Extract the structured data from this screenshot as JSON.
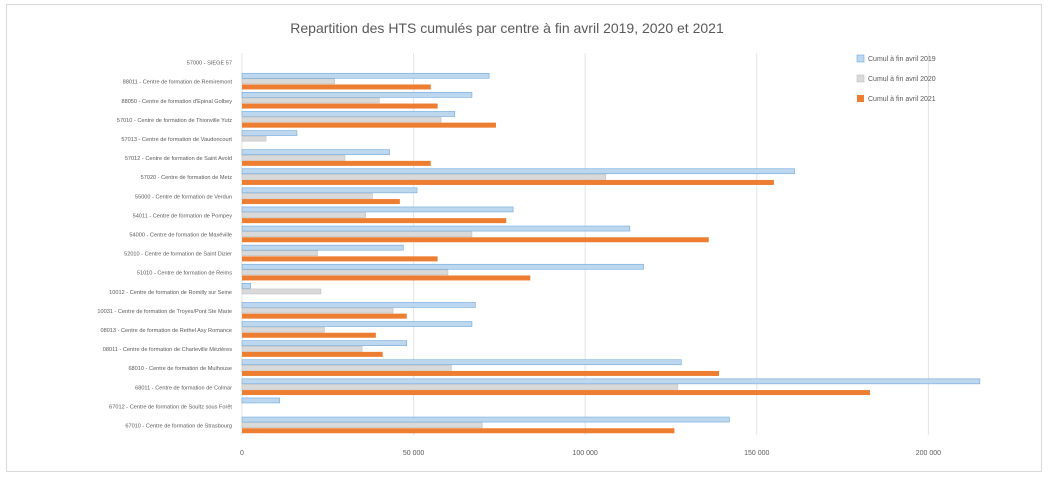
{
  "chart_data": {
    "type": "bar",
    "orientation": "horizontal",
    "title": "Repartition des HTS cumulés par centre à fin avril 2019, 2020 et 2021",
    "xlabel": "",
    "ylabel": "",
    "xlim": [
      0,
      220000
    ],
    "x_ticks": [
      0,
      50000,
      100000,
      150000,
      200000
    ],
    "x_tick_labels": [
      "0",
      "50 000",
      "100 000",
      "150 000",
      "200 000"
    ],
    "grid": true,
    "legend_position": "top-right",
    "categories": [
      "57000 - SIEGE 57",
      "88011 - Centre de formation de Remiremont",
      "88050 - Centre de formation d'Epinal Golbey",
      "57010 - Centre de formation de Thionville Yutz",
      "57013 - Centre de formation de Vaudoncourt",
      "57012 - Centre de formation de Saint Avold",
      "57020 - Centre de formation de Metz",
      "55000 - Centre de formation de Verdun",
      "54011 - Centre de formation de Pompey",
      "54000 - Centre de formation de Maxéville",
      "52010 - Centre de formation de Saint Dizier",
      "51010 - Centre de formation de Reims",
      "10012 - Centre de formation de Romilly sur Seine",
      "10031 - Centre de formation de Troyes/Pont Ste Marie",
      "08013 - Centre de formation de Rethel Asy Romance",
      "08011 - Centre de formation de Charleville Mézières",
      "68010 - Centre de formation de Mulhouse",
      "68011 - Centre de formation de Colmar",
      "67012 - Centre de formation de Soultz sous Forêt",
      "67010 - Centre de formation de Strasbourg"
    ],
    "series": [
      {
        "name": "Cumul à fin avril 2019",
        "color": "#bdd7ee",
        "values": [
          0,
          72000,
          67000,
          62000,
          16000,
          43000,
          161000,
          51000,
          79000,
          113000,
          47000,
          117000,
          2500,
          68000,
          67000,
          48000,
          128000,
          215000,
          11000,
          142000
        ]
      },
      {
        "name": "Cumul à fin avril 2020",
        "color": "#d9d9d9",
        "values": [
          0,
          27000,
          40000,
          58000,
          7000,
          30000,
          106000,
          38000,
          36000,
          67000,
          22000,
          60000,
          23000,
          44000,
          24000,
          35000,
          61000,
          127000,
          0,
          70000
        ]
      },
      {
        "name": "Cumul à fin avril 2021",
        "color": "#ed7d31",
        "values": [
          0,
          55000,
          57000,
          74000,
          0,
          55000,
          155000,
          46000,
          77000,
          136000,
          57000,
          84000,
          0,
          48000,
          39000,
          41000,
          139000,
          183000,
          0,
          126000
        ]
      }
    ]
  }
}
